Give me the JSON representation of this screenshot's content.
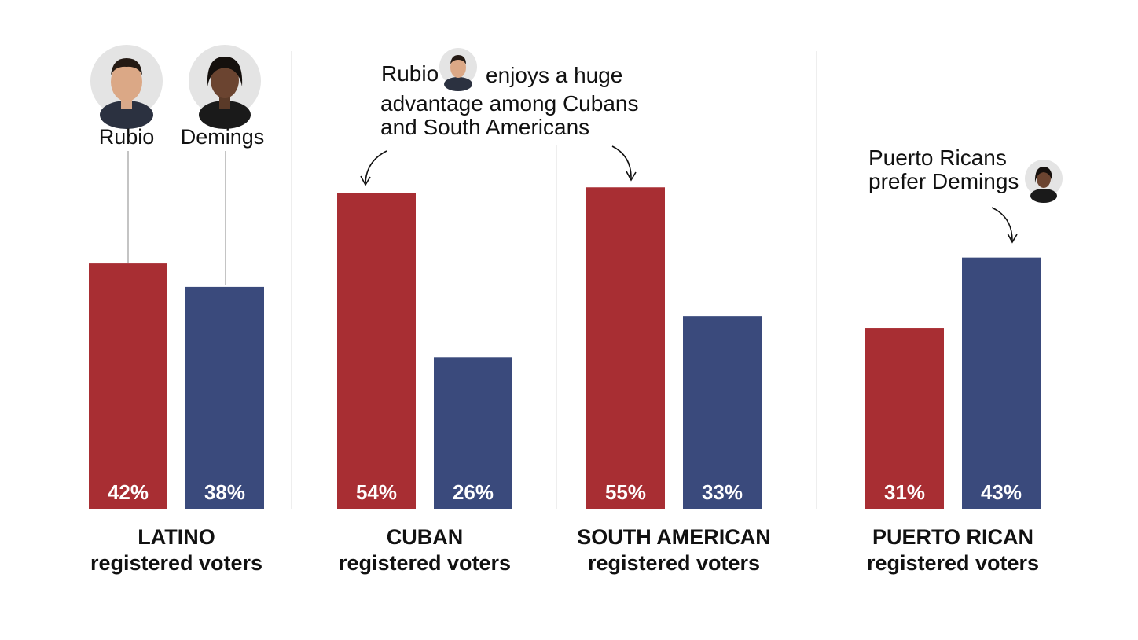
{
  "chart_data": {
    "type": "bar",
    "series": [
      {
        "name": "Rubio",
        "color": "#a82e33",
        "values": [
          42,
          54,
          55,
          31
        ]
      },
      {
        "name": "Demings",
        "color": "#3a4a7c",
        "values": [
          38,
          26,
          33,
          43
        ]
      }
    ],
    "categories": [
      {
        "title": "LATINO",
        "subtitle": "registered voters"
      },
      {
        "title": "CUBAN",
        "subtitle": "registered voters"
      },
      {
        "title": "SOUTH AMERICAN",
        "subtitle": "registered voters"
      },
      {
        "title": "PUERTO RICAN",
        "subtitle": "registered voters"
      }
    ],
    "value_suffix": "%",
    "ylim": [
      0,
      100
    ],
    "annotations": {
      "rubio_line1_a": "Rubio",
      "rubio_line1_b": "enjoys a huge",
      "rubio_line2": "advantage among Cubans",
      "rubio_line3": "and South Americans",
      "demings_line1": "Puerto Ricans",
      "demings_line2": "prefer Demings"
    },
    "legend": {
      "rubio_label": "Rubio",
      "demings_label": "Demings",
      "rubio_icon": "rubio-portrait-icon",
      "demings_icon": "demings-portrait-icon"
    },
    "grid": false
  }
}
